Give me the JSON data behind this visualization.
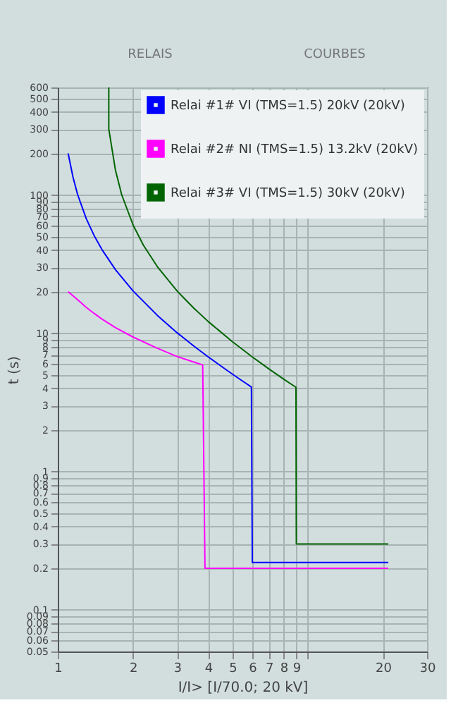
{
  "chart_data": {
    "type": "line",
    "xlabel": "I/I> [I/70.0; 20 kV]",
    "ylabel": "t (s)",
    "log": "xy",
    "grid": true,
    "legend": "top right",
    "marker": "none",
    "line_style": "solid",
    "annotations": [
      "RELAIS",
      "COURBES"
    ],
    "xlim": [
      1,
      30
    ],
    "ylim": [
      0.05,
      600
    ],
    "xticks": [
      1,
      2,
      3,
      4,
      5,
      6,
      7,
      8,
      9,
      {
        "value": 10,
        "label": null
      },
      20,
      30
    ],
    "yticks": [
      0.05,
      0.06,
      0.07,
      0.08,
      0.09,
      0.1,
      0.2,
      0.3,
      0.4,
      0.5,
      0.6,
      0.7,
      0.8,
      0.9,
      1,
      2,
      3,
      4,
      5,
      6,
      7,
      8,
      9,
      10,
      20,
      30,
      40,
      50,
      60,
      70,
      80,
      90,
      100,
      200,
      300,
      400,
      500,
      600
    ],
    "series": [
      {
        "name": "Relai #1# VI (TMS=1.5) 20kV (20kV)",
        "color": "#0000ff",
        "x": [
          1.1,
          1.15,
          1.2,
          1.3,
          1.4,
          1.5,
          1.7,
          2,
          2.5,
          3,
          3.5,
          4,
          4.5,
          5,
          5.5,
          5.95,
          6.0,
          21
        ],
        "values": [
          200,
          135,
          101,
          67.5,
          50.6,
          40.5,
          28.9,
          20.25,
          13.5,
          10.1,
          8.1,
          6.75,
          5.79,
          5.06,
          4.5,
          4.09,
          0.22,
          0.22
        ]
      },
      {
        "name": "Relai #2# NI (TMS=1.5) 13.2kV (20kV)",
        "color": "#ff00ff",
        "x": [
          1.1,
          1.2,
          1.3,
          1.4,
          1.5,
          1.7,
          2,
          2.5,
          3,
          3.5,
          3.8,
          3.88,
          21
        ],
        "values": [
          20,
          17.5,
          15.4,
          13.9,
          12.7,
          11,
          9.4,
          7.8,
          6.8,
          6.2,
          5.9,
          0.2,
          0.2
        ]
      },
      {
        "name": "Relai #3# VI (TMS=1.5) 30kV (20kV)",
        "color": "#006400",
        "x": [
          1.6,
          1.6,
          1.7,
          1.8,
          2,
          2.2,
          2.5,
          3,
          3.5,
          4,
          5,
          6,
          7,
          8,
          8.97,
          9,
          21
        ],
        "values": [
          600,
          300,
          152,
          101,
          60.8,
          43.4,
          30.4,
          20.25,
          15.2,
          12.15,
          8.68,
          6.75,
          5.52,
          4.67,
          4.07,
          0.3,
          0.3
        ]
      }
    ]
  }
}
